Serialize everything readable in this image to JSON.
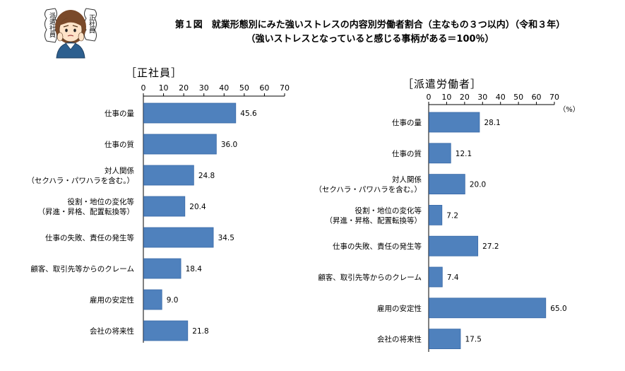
{
  "header": {
    "title_line1": "第１図　就業形態別にみた強いストレスの内容別労働者割合（主なもの３つ以内）（令和３年）",
    "title_line2": "（強いストレスとなっていると感じる事柄がある＝100％）",
    "mascot_left_text": "派遣社員",
    "mascot_right_text": "正社員"
  },
  "colors": {
    "bar": "#4f81bd",
    "bar_edge": "#3a6aa8",
    "axis": "#000000",
    "text": "#000000"
  },
  "chart_data": [
    {
      "type": "bar",
      "orientation": "horizontal",
      "title": "［正社員］",
      "unit": "",
      "xlim": [
        0,
        70
      ],
      "ticks": [
        "0",
        "10",
        "20",
        "30",
        "40",
        "50",
        "60",
        "70"
      ],
      "categories": [
        [
          "仕事の量"
        ],
        [
          "仕事の質"
        ],
        [
          "対人関係",
          "（セクハラ・パワハラを含む。）"
        ],
        [
          "役割・地位の変化等",
          "（昇進・昇格、配置転換等）"
        ],
        [
          "仕事の失敗、責任の発生等"
        ],
        [
          "顧客、取引先等からのクレーム"
        ],
        [
          "雇用の安定性"
        ],
        [
          "会社の将来性"
        ]
      ],
      "values": [
        45.6,
        36.0,
        24.8,
        20.4,
        34.5,
        18.4,
        9.0,
        21.8
      ],
      "value_labels": [
        "45.6",
        "36.0",
        "24.8",
        "20.4",
        "34.5",
        "18.4",
        "9.0",
        "21.8"
      ]
    },
    {
      "type": "bar",
      "orientation": "horizontal",
      "title": "［派遣労働者］",
      "unit": "（%）",
      "xlim": [
        0,
        70
      ],
      "ticks": [
        "0",
        "10",
        "20",
        "30",
        "40",
        "50",
        "60",
        "70"
      ],
      "categories": [
        [
          "仕事の量"
        ],
        [
          "仕事の質"
        ],
        [
          "対人関係",
          "（セクハラ・パワハラを含む。）"
        ],
        [
          "役割・地位の変化等",
          "（昇進・昇格、配置転換等）"
        ],
        [
          "仕事の失敗、責任の発生等"
        ],
        [
          "顧客、取引先等からのクレーム"
        ],
        [
          "雇用の安定性"
        ],
        [
          "会社の将来性"
        ]
      ],
      "values": [
        28.1,
        12.1,
        20.0,
        7.2,
        27.2,
        7.4,
        65.0,
        17.5
      ],
      "value_labels": [
        "28.1",
        "12.1",
        "20.0",
        "7.2",
        "27.2",
        "7.4",
        "65.0",
        "17.5"
      ]
    }
  ]
}
